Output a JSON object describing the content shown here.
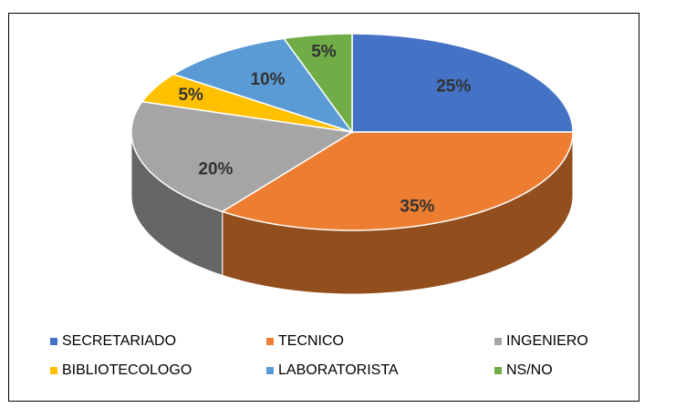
{
  "chart_data": {
    "type": "pie",
    "categories": [
      "SECRETARIADO",
      "TECNICO",
      "INGENIERO",
      "BIBLIOTECOLOGO",
      "LABORATORISTA",
      "NS/NO"
    ],
    "values": [
      25,
      35,
      20,
      5,
      10,
      5
    ],
    "value_labels": [
      "25%",
      "35%",
      "20%",
      "5%",
      "10%",
      "5%"
    ],
    "colors": [
      "#4472c4",
      "#ed7d31",
      "#a5a5a5",
      "#ffc000",
      "#5b9bd5",
      "#70ad47"
    ],
    "legend": "bottom"
  }
}
